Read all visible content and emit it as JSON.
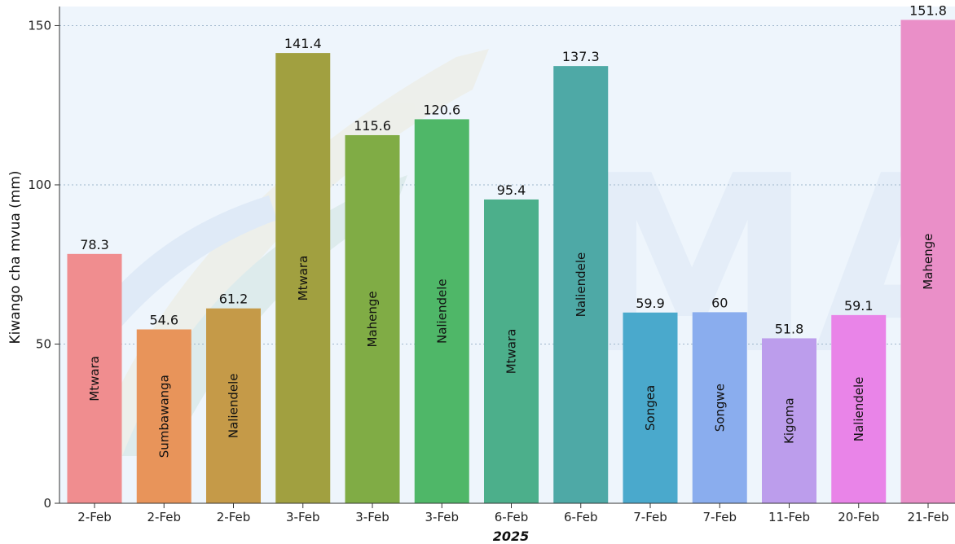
{
  "chart_data": {
    "type": "bar",
    "categories": [
      "2-Feb",
      "2-Feb",
      "2-Feb",
      "3-Feb",
      "3-Feb",
      "3-Feb",
      "6-Feb",
      "6-Feb",
      "7-Feb",
      "7-Feb",
      "11-Feb",
      "20-Feb",
      "21-Feb"
    ],
    "values": [
      78.3,
      54.6,
      61.2,
      141.4,
      115.6,
      120.6,
      95.4,
      137.3,
      59.9,
      60,
      51.8,
      59.1,
      151.8
    ],
    "value_labels": [
      "78.3",
      "54.6",
      "61.2",
      "141.4",
      "115.6",
      "120.6",
      "95.4",
      "137.3",
      "59.9",
      "60",
      "51.8",
      "59.1",
      "151.8"
    ],
    "stations": [
      "Mtwara",
      "Sumbawanga",
      "Naliendele",
      "Mtwara",
      "Mahenge",
      "Naliendele",
      "Mtwara",
      "Naliendele",
      "Songea",
      "Songwe",
      "Kigoma",
      "Naliendele",
      "Mahenge"
    ],
    "colors": [
      "#f08d8f",
      "#e8945a",
      "#c59a48",
      "#a1a040",
      "#80ac45",
      "#4fb768",
      "#4caf8b",
      "#4ea9a6",
      "#4aa9cc",
      "#8aadee",
      "#bc9dec",
      "#e984e8",
      "#ea8fc8"
    ],
    "xlabel": "2025",
    "ylabel": "Kiwango cha mvua (mm)",
    "ylim": [
      0,
      156
    ],
    "yticks": [
      0,
      50,
      100,
      150
    ],
    "grid": true,
    "background": "#eef5fc"
  }
}
